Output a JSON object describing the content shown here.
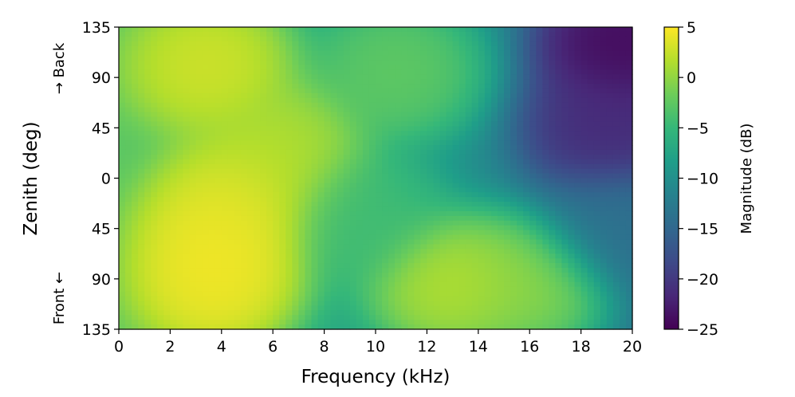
{
  "chart_data": {
    "type": "heatmap",
    "title": "",
    "xlabel": "Frequency (kHz)",
    "ylabel": "Zenith (deg)",
    "xlim": [
      0,
      20
    ],
    "ylim": [
      -135,
      135
    ],
    "x_ticks": [
      0,
      2,
      4,
      6,
      8,
      10,
      12,
      14,
      16,
      18,
      20
    ],
    "y_ticks": [
      135,
      90,
      45,
      0,
      -45,
      -90,
      -135
    ],
    "y_tick_labels": [
      "135",
      "90",
      "45",
      "0",
      "45",
      "90",
      "135"
    ],
    "direction_labels": {
      "top": "→ Back",
      "bottom": "Front ←"
    },
    "colorbar": {
      "label": "Magnitude (dB)",
      "range": [
        -25,
        5
      ],
      "ticks": [
        5,
        0,
        -5,
        -10,
        -15,
        -20,
        -25
      ],
      "tick_labels": [
        "5",
        "0",
        "−5",
        "−10",
        "−15",
        "−20",
        "−25"
      ],
      "colormap": "viridis"
    },
    "regions": [
      {
        "f": 4.0,
        "z": -55,
        "mag": 5.0
      },
      {
        "f": 3.8,
        "z": -95,
        "mag": 5.0
      },
      {
        "f": 4.8,
        "z": -20,
        "mag": 4.0
      },
      {
        "f": 3.6,
        "z": 100,
        "mag": 3.5
      },
      {
        "f": 6.5,
        "z": 25,
        "mag": 2.0
      },
      {
        "f": 13.0,
        "z": -95,
        "mag": 2.5
      },
      {
        "f": 16.0,
        "z": -95,
        "mag": 0.5
      },
      {
        "f": 11.0,
        "z": 95,
        "mag": -2.0
      },
      {
        "f": 9.5,
        "z": -35,
        "mag": -4.0
      },
      {
        "f": 19.5,
        "z": 120,
        "mag": -25.0
      },
      {
        "f": 19.0,
        "z": 45,
        "mag": -22.0
      },
      {
        "f": 19.5,
        "z": -45,
        "mag": -14.0
      }
    ]
  }
}
